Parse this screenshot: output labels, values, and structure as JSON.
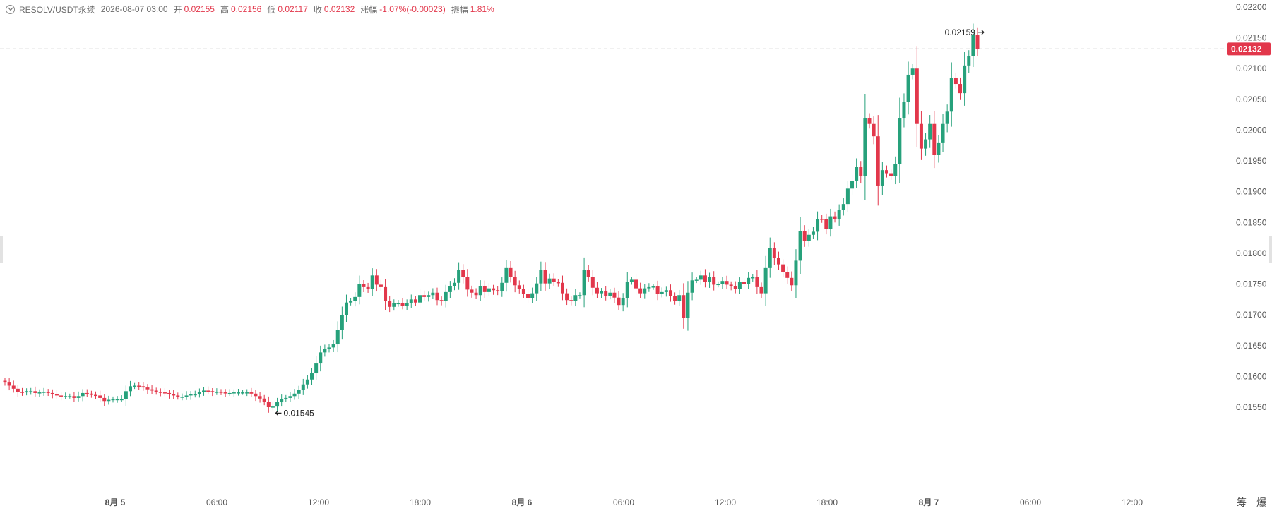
{
  "header": {
    "symbol": "RESOLV/USDT永续",
    "time": "2026-08-07 03:00",
    "open_label": "开",
    "open": "0.02155",
    "high_label": "高",
    "high": "0.02156",
    "low_label": "低",
    "low": "0.02117",
    "close_label": "收",
    "close": "0.02132",
    "change_label": "涨幅",
    "change": "-1.07%(-0.00023)",
    "amplitude_label": "振幅",
    "amplitude": "1.81%"
  },
  "footer": {
    "icon1": "筹",
    "icon2": "爆"
  },
  "colors": {
    "up": "#26a17b",
    "down": "#e2374b",
    "grid_text": "#555555",
    "dash": "#8c8c8c"
  },
  "chart_data": {
    "type": "candlestick",
    "interval_hours": 1,
    "y_ticks": [
      "0.02200",
      "0.02150",
      "0.02100",
      "0.02050",
      "0.02000",
      "0.01950",
      "0.01900",
      "0.01850",
      "0.01800",
      "0.01750",
      "0.01700",
      "0.01650",
      "0.01600",
      "0.01550"
    ],
    "ylim": [
      0.015,
      0.0221
    ],
    "x_ticks": [
      "8月 5",
      "06:00",
      "12:00",
      "18:00",
      "8月 6",
      "06:00",
      "12:00",
      "18:00",
      "8月 7",
      "06:00",
      "12:00"
    ],
    "x_tick_bold": [
      true,
      false,
      false,
      false,
      true,
      false,
      false,
      false,
      true,
      false,
      false
    ],
    "current_price": "0.02132",
    "max_label": "0.02159",
    "min_label": "0.01545",
    "max_index": 233,
    "min_index": 62,
    "closes": [
      0.0159,
      0.01585,
      0.0158,
      0.01575,
      0.01574,
      0.01576,
      0.01576,
      0.01573,
      0.01574,
      0.01575,
      0.01573,
      0.01571,
      0.01569,
      0.01568,
      0.01568,
      0.01568,
      0.01565,
      0.01568,
      0.01573,
      0.01572,
      0.0157,
      0.01569,
      0.01565,
      0.0156,
      0.01562,
      0.01563,
      0.01563,
      0.01563,
      0.01576,
      0.01584,
      0.01585,
      0.01584,
      0.01582,
      0.01579,
      0.01577,
      0.01575,
      0.01574,
      0.01573,
      0.01571,
      0.01569,
      0.01567,
      0.01567,
      0.01569,
      0.01571,
      0.01571,
      0.01575,
      0.01577,
      0.01576,
      0.01575,
      0.01575,
      0.01574,
      0.01573,
      0.01573,
      0.01574,
      0.01574,
      0.01574,
      0.01574,
      0.01572,
      0.01568,
      0.01564,
      0.01559,
      0.0155,
      0.01551,
      0.01558,
      0.01563,
      0.01565,
      0.01568,
      0.01572,
      0.01578,
      0.01587,
      0.01595,
      0.01605,
      0.01621,
      0.01639,
      0.01644,
      0.01647,
      0.01652,
      0.01675,
      0.017,
      0.0172,
      0.01722,
      0.01729,
      0.0175,
      0.01745,
      0.01742,
      0.01764,
      0.01749,
      0.01745,
      0.01722,
      0.01713,
      0.01719,
      0.01719,
      0.01715,
      0.01719,
      0.01725,
      0.0172,
      0.01732,
      0.01729,
      0.01732,
      0.01736,
      0.01724,
      0.01722,
      0.01737,
      0.01747,
      0.01752,
      0.01773,
      0.01761,
      0.01741,
      0.01736,
      0.01732,
      0.01747,
      0.01737,
      0.01743,
      0.0174,
      0.01738,
      0.01752,
      0.01776,
      0.01762,
      0.01748,
      0.01742,
      0.01734,
      0.01727,
      0.01735,
      0.01751,
      0.01773,
      0.01751,
      0.01759,
      0.01753,
      0.01752,
      0.01735,
      0.01724,
      0.01722,
      0.01732,
      0.01732,
      0.01773,
      0.01762,
      0.01744,
      0.01735,
      0.01738,
      0.01731,
      0.01736,
      0.01728,
      0.01716,
      0.01727,
      0.01754,
      0.01757,
      0.01743,
      0.01735,
      0.01743,
      0.01745,
      0.01746,
      0.01734,
      0.01737,
      0.0174,
      0.0173,
      0.01723,
      0.01732,
      0.01695,
      0.01736,
      0.01756,
      0.01757,
      0.01764,
      0.01753,
      0.01761,
      0.01749,
      0.0175,
      0.01755,
      0.01749,
      0.01747,
      0.01742,
      0.01753,
      0.0175,
      0.0176,
      0.01761,
      0.01745,
      0.01735,
      0.01776,
      0.01808,
      0.01793,
      0.01782,
      0.0177,
      0.0176,
      0.01748,
      0.01788,
      0.01836,
      0.0182,
      0.0183,
      0.01835,
      0.01856,
      0.01855,
      0.0184,
      0.0186,
      0.01856,
      0.0187,
      0.0188,
      0.01905,
      0.01918,
      0.0194,
      0.01925,
      0.0202,
      0.0201,
      0.0199,
      0.0191,
      0.01935,
      0.0193,
      0.01925,
      0.01945,
      0.0202,
      0.02046,
      0.0209,
      0.021,
      0.0201,
      0.0197,
      0.01985,
      0.0201,
      0.0196,
      0.0198,
      0.0201,
      0.0203,
      0.02085,
      0.02075,
      0.0206,
      0.02105,
      0.0212,
      0.02155,
      0.02132
    ],
    "up_body_color": "#26a17b",
    "down_body_color": "#e2374b"
  }
}
